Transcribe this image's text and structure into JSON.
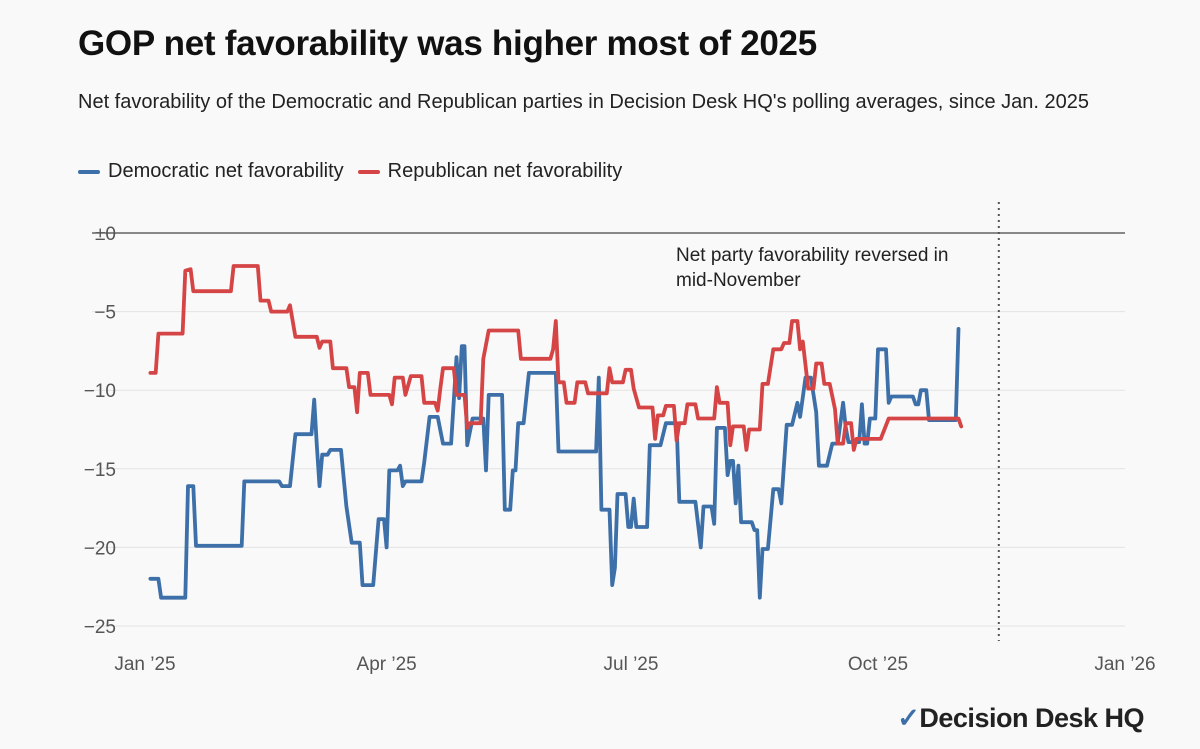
{
  "title": "GOP net favorability was higher most of 2025",
  "subtitle": "Net favorability of the Democratic and Republican parties in Decision Desk HQ's polling averages, since Jan. 2025",
  "brand": "Decision Desk HQ",
  "chart_data": {
    "type": "line",
    "x_unit": "date",
    "xlim": [
      "2025-01-01",
      "2026-01-01"
    ],
    "ylim": [
      -26,
      0
    ],
    "y_ticks": [
      0,
      -5,
      -10,
      -15,
      -20,
      -25
    ],
    "y_tick_labels": [
      "±0",
      "−5",
      "−10",
      "−15",
      "−20",
      "−25"
    ],
    "x_ticks": [
      "2025-01-01",
      "2025-04-01",
      "2025-07-01",
      "2025-10-01",
      "2026-01-01"
    ],
    "x_tick_labels": [
      "Jan ’25",
      "Apr ’25",
      "Jul ’25",
      "Oct ’25",
      "Jan ’26"
    ],
    "grid": true,
    "legend_position": "top-left",
    "annotation": {
      "date": "2025-11-15",
      "lines": [
        "Net party favorability reversed in",
        "mid-November"
      ]
    },
    "series": [
      {
        "name": "Democratic net favorability",
        "color": "#3d6fa8",
        "points": [
          [
            "2025-01-03",
            -22
          ],
          [
            "2025-01-06",
            -22
          ],
          [
            "2025-01-07",
            -23.2
          ],
          [
            "2025-01-16",
            -23.2
          ],
          [
            "2025-01-17",
            -16.1
          ],
          [
            "2025-01-19",
            -16.1
          ],
          [
            "2025-01-20",
            -19.9
          ],
          [
            "2025-02-06",
            -19.9
          ],
          [
            "2025-02-07",
            -15.8
          ],
          [
            "2025-02-20",
            -15.8
          ],
          [
            "2025-02-21",
            -16.1
          ],
          [
            "2025-02-24",
            -16.1
          ],
          [
            "2025-02-26",
            -12.8
          ],
          [
            "2025-03-04",
            -12.8
          ],
          [
            "2025-03-05",
            -10.6
          ],
          [
            "2025-03-06",
            -13.5
          ],
          [
            "2025-03-07",
            -16.1
          ],
          [
            "2025-03-08",
            -14.1
          ],
          [
            "2025-03-10",
            -14.1
          ],
          [
            "2025-03-11",
            -13.8
          ],
          [
            "2025-03-15",
            -13.8
          ],
          [
            "2025-03-17",
            -17.4
          ],
          [
            "2025-03-19",
            -19.7
          ],
          [
            "2025-03-22",
            -19.7
          ],
          [
            "2025-03-23",
            -22.4
          ],
          [
            "2025-03-27",
            -22.4
          ],
          [
            "2025-03-29",
            -18.2
          ],
          [
            "2025-03-31",
            -18.2
          ],
          [
            "2025-04-01",
            -20
          ],
          [
            "2025-04-02",
            -15.1
          ],
          [
            "2025-04-05",
            -15.1
          ],
          [
            "2025-04-06",
            -14.8
          ],
          [
            "2025-04-07",
            -16.1
          ],
          [
            "2025-04-08",
            -15.8
          ],
          [
            "2025-04-14",
            -15.8
          ],
          [
            "2025-04-15",
            -14.6
          ],
          [
            "2025-04-17",
            -11.7
          ],
          [
            "2025-04-20",
            -11.7
          ],
          [
            "2025-04-22",
            -13.4
          ],
          [
            "2025-04-25",
            -13.4
          ],
          [
            "2025-04-27",
            -7.9
          ],
          [
            "2025-04-28",
            -10.5
          ],
          [
            "2025-04-29",
            -7.2
          ],
          [
            "2025-04-30",
            -7.2
          ],
          [
            "2025-05-01",
            -13.5
          ],
          [
            "2025-05-03",
            -11.8
          ],
          [
            "2025-05-07",
            -11.8
          ],
          [
            "2025-05-08",
            -15.1
          ],
          [
            "2025-05-09",
            -10.3
          ],
          [
            "2025-05-14",
            -10.3
          ],
          [
            "2025-05-15",
            -17.6
          ],
          [
            "2025-05-17",
            -17.6
          ],
          [
            "2025-05-18",
            -15.1
          ],
          [
            "2025-05-19",
            -15.1
          ],
          [
            "2025-05-20",
            -12.1
          ],
          [
            "2025-05-22",
            -12.1
          ],
          [
            "2025-05-24",
            -8.9
          ],
          [
            "2025-06-03",
            -8.9
          ],
          [
            "2025-06-04",
            -13.9
          ],
          [
            "2025-06-18",
            -13.9
          ],
          [
            "2025-06-19",
            -9.2
          ],
          [
            "2025-06-20",
            -17.6
          ],
          [
            "2025-06-23",
            -17.6
          ],
          [
            "2025-06-24",
            -22.4
          ],
          [
            "2025-06-25",
            -21.3
          ],
          [
            "2025-06-26",
            -16.6
          ],
          [
            "2025-06-29",
            -16.6
          ],
          [
            "2025-06-30",
            -18.7
          ],
          [
            "2025-07-01",
            -18.7
          ],
          [
            "2025-07-02",
            -16.9
          ],
          [
            "2025-07-03",
            -18.7
          ],
          [
            "2025-07-07",
            -18.7
          ],
          [
            "2025-07-08",
            -13.5
          ],
          [
            "2025-07-12",
            -13.5
          ],
          [
            "2025-07-14",
            -12.1
          ],
          [
            "2025-07-18",
            -12.1
          ],
          [
            "2025-07-19",
            -17.1
          ],
          [
            "2025-07-25",
            -17.1
          ],
          [
            "2025-07-27",
            -20
          ],
          [
            "2025-07-28",
            -17.4
          ],
          [
            "2025-07-31",
            -17.4
          ],
          [
            "2025-08-01",
            -18.5
          ],
          [
            "2025-08-02",
            -12.4
          ],
          [
            "2025-08-05",
            -12.4
          ],
          [
            "2025-08-06",
            -15.4
          ],
          [
            "2025-08-07",
            -14.5
          ],
          [
            "2025-08-08",
            -14.5
          ],
          [
            "2025-08-09",
            -17.2
          ],
          [
            "2025-08-10",
            -14.8
          ],
          [
            "2025-08-11",
            -18.4
          ],
          [
            "2025-08-15",
            -18.4
          ],
          [
            "2025-08-16",
            -18.9
          ],
          [
            "2025-08-17",
            -18.9
          ],
          [
            "2025-08-18",
            -23.2
          ],
          [
            "2025-08-19",
            -20.1
          ],
          [
            "2025-08-21",
            -20.1
          ],
          [
            "2025-08-23",
            -16.3
          ],
          [
            "2025-08-25",
            -16.3
          ],
          [
            "2025-08-26",
            -17.2
          ],
          [
            "2025-08-28",
            -12.2
          ],
          [
            "2025-08-30",
            -12.2
          ],
          [
            "2025-09-01",
            -10.8
          ],
          [
            "2025-09-02",
            -11.7
          ],
          [
            "2025-09-04",
            -9.2
          ],
          [
            "2025-09-06",
            -9.2
          ],
          [
            "2025-09-08",
            -11.4
          ],
          [
            "2025-09-09",
            -14.8
          ],
          [
            "2025-09-12",
            -14.8
          ],
          [
            "2025-09-14",
            -13.4
          ],
          [
            "2025-09-16",
            -13.4
          ],
          [
            "2025-09-18",
            -10.8
          ],
          [
            "2025-09-19",
            -12.4
          ],
          [
            "2025-09-20",
            -13.3
          ],
          [
            "2025-09-24",
            -13.3
          ],
          [
            "2025-09-25",
            -10.9
          ],
          [
            "2025-09-26",
            -13.4
          ],
          [
            "2025-09-27",
            -13.4
          ],
          [
            "2025-09-28",
            -11.8
          ],
          [
            "2025-09-30",
            -11.8
          ],
          [
            "2025-10-01",
            -7.4
          ],
          [
            "2025-10-04",
            -7.4
          ],
          [
            "2025-10-05",
            -10.8
          ],
          [
            "2025-10-06",
            -10.4
          ],
          [
            "2025-10-14",
            -10.4
          ],
          [
            "2025-10-15",
            -10.9
          ],
          [
            "2025-10-16",
            -10.9
          ],
          [
            "2025-10-17",
            -10
          ],
          [
            "2025-10-19",
            -10
          ],
          [
            "2025-10-20",
            -11.9
          ],
          [
            "2025-10-30",
            -11.9
          ],
          [
            "2025-10-31",
            -6.1
          ]
        ]
      },
      {
        "name": "Republican net favorability",
        "color": "#d64545",
        "points": [
          [
            "2025-01-03",
            -8.9
          ],
          [
            "2025-01-05",
            -8.9
          ],
          [
            "2025-01-06",
            -6.4
          ],
          [
            "2025-01-15",
            -6.4
          ],
          [
            "2025-01-16",
            -2.4
          ],
          [
            "2025-01-18",
            -2.3
          ],
          [
            "2025-01-19",
            -3.7
          ],
          [
            "2025-02-02",
            -3.7
          ],
          [
            "2025-02-03",
            -2.1
          ],
          [
            "2025-02-12",
            -2.1
          ],
          [
            "2025-02-13",
            -4.3
          ],
          [
            "2025-02-16",
            -4.3
          ],
          [
            "2025-02-17",
            -5
          ],
          [
            "2025-02-23",
            -5
          ],
          [
            "2025-02-24",
            -4.6
          ],
          [
            "2025-02-26",
            -6.6
          ],
          [
            "2025-03-06",
            -6.6
          ],
          [
            "2025-03-07",
            -7.3
          ],
          [
            "2025-03-08",
            -6.9
          ],
          [
            "2025-03-11",
            -6.9
          ],
          [
            "2025-03-12",
            -8.6
          ],
          [
            "2025-03-17",
            -8.6
          ],
          [
            "2025-03-18",
            -9.8
          ],
          [
            "2025-03-20",
            -9.8
          ],
          [
            "2025-03-21",
            -11.4
          ],
          [
            "2025-03-22",
            -8.9
          ],
          [
            "2025-03-25",
            -8.9
          ],
          [
            "2025-03-26",
            -10.3
          ],
          [
            "2025-04-02",
            -10.3
          ],
          [
            "2025-04-03",
            -10.9
          ],
          [
            "2025-04-04",
            -9.2
          ],
          [
            "2025-04-07",
            -9.2
          ],
          [
            "2025-04-08",
            -10.3
          ],
          [
            "2025-04-10",
            -9.1
          ],
          [
            "2025-04-14",
            -9.1
          ],
          [
            "2025-04-15",
            -10.8
          ],
          [
            "2025-04-19",
            -10.8
          ],
          [
            "2025-04-20",
            -11.3
          ],
          [
            "2025-04-21",
            -9.9
          ],
          [
            "2025-04-22",
            -8.6
          ],
          [
            "2025-04-26",
            -8.6
          ],
          [
            "2025-04-27",
            -10.3
          ],
          [
            "2025-04-30",
            -10.3
          ],
          [
            "2025-05-01",
            -12.4
          ],
          [
            "2025-05-02",
            -12.1
          ],
          [
            "2025-05-06",
            -12.1
          ],
          [
            "2025-05-07",
            -8
          ],
          [
            "2025-05-09",
            -6.2
          ],
          [
            "2025-05-20",
            -6.2
          ],
          [
            "2025-05-21",
            -8
          ],
          [
            "2025-06-01",
            -8
          ],
          [
            "2025-06-02",
            -7.4
          ],
          [
            "2025-06-03",
            -5.6
          ],
          [
            "2025-06-04",
            -9.5
          ],
          [
            "2025-06-06",
            -9.5
          ],
          [
            "2025-06-07",
            -10.8
          ],
          [
            "2025-06-10",
            -10.8
          ],
          [
            "2025-06-11",
            -9.5
          ],
          [
            "2025-06-14",
            -9.5
          ],
          [
            "2025-06-15",
            -10.2
          ],
          [
            "2025-06-22",
            -10.2
          ],
          [
            "2025-06-23",
            -8.6
          ],
          [
            "2025-06-24",
            -9.5
          ],
          [
            "2025-06-28",
            -9.5
          ],
          [
            "2025-06-29",
            -8.7
          ],
          [
            "2025-07-01",
            -8.7
          ],
          [
            "2025-07-02",
            -9.9
          ],
          [
            "2025-07-04",
            -11.1
          ],
          [
            "2025-07-09",
            -11.1
          ],
          [
            "2025-07-10",
            -13.1
          ],
          [
            "2025-07-11",
            -11.6
          ],
          [
            "2025-07-13",
            -11.6
          ],
          [
            "2025-07-14",
            -11
          ],
          [
            "2025-07-17",
            -11
          ],
          [
            "2025-07-18",
            -13.2
          ],
          [
            "2025-07-19",
            -12.1
          ],
          [
            "2025-07-21",
            -12.1
          ],
          [
            "2025-07-22",
            -10.9
          ],
          [
            "2025-07-25",
            -10.9
          ],
          [
            "2025-07-26",
            -11.8
          ],
          [
            "2025-08-01",
            -11.8
          ],
          [
            "2025-08-02",
            -9.8
          ],
          [
            "2025-08-03",
            -10.8
          ],
          [
            "2025-08-06",
            -10.8
          ],
          [
            "2025-08-07",
            -13.5
          ],
          [
            "2025-08-08",
            -12.3
          ],
          [
            "2025-08-12",
            -12.3
          ],
          [
            "2025-08-13",
            -13.8
          ],
          [
            "2025-08-14",
            -12.5
          ],
          [
            "2025-08-18",
            -12.5
          ],
          [
            "2025-08-19",
            -9.6
          ],
          [
            "2025-08-21",
            -9.6
          ],
          [
            "2025-08-23",
            -7.4
          ],
          [
            "2025-08-26",
            -7.4
          ],
          [
            "2025-08-27",
            -7
          ],
          [
            "2025-08-29",
            -7
          ],
          [
            "2025-08-30",
            -5.6
          ],
          [
            "2025-09-01",
            -5.6
          ],
          [
            "2025-09-02",
            -7.4
          ],
          [
            "2025-09-03",
            -6.9
          ],
          [
            "2025-09-05",
            -9.9
          ],
          [
            "2025-09-07",
            -9.9
          ],
          [
            "2025-09-08",
            -8.3
          ],
          [
            "2025-09-10",
            -8.3
          ],
          [
            "2025-09-11",
            -9.6
          ],
          [
            "2025-09-13",
            -9.6
          ],
          [
            "2025-09-15",
            -11.2
          ],
          [
            "2025-09-16",
            -13.4
          ],
          [
            "2025-09-18",
            -13.4
          ],
          [
            "2025-09-19",
            -12.1
          ],
          [
            "2025-09-21",
            -12.1
          ],
          [
            "2025-09-22",
            -13.8
          ],
          [
            "2025-09-23",
            -13.1
          ],
          [
            "2025-10-02",
            -13.1
          ],
          [
            "2025-10-05",
            -11.8
          ],
          [
            "2025-10-10",
            -11.8
          ],
          [
            "2025-10-31",
            -11.8
          ],
          [
            "2025-11-01",
            -12.3
          ]
        ]
      }
    ]
  }
}
